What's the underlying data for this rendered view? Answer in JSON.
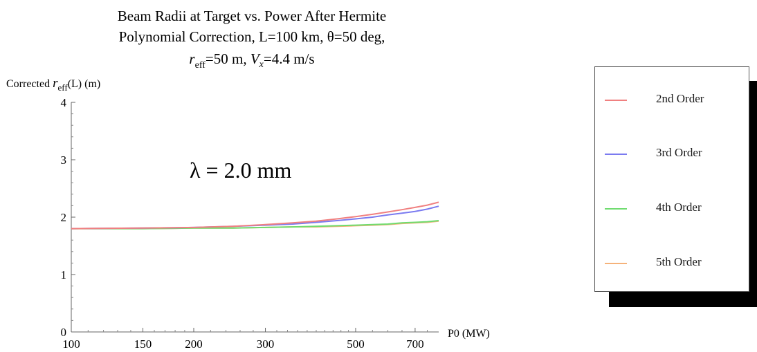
{
  "chart_data": {
    "type": "line",
    "title_lines": [
      "Beam Radii at Target vs. Power After Hermite",
      "Polynomial Correction, L=100 km, θ=50 deg,"
    ],
    "title_line3": {
      "r": "r",
      "eff": "eff",
      "mid": "=50 m, ",
      "V": "V",
      "x": "x",
      "end": "=4.4 m/s"
    },
    "ylabel": {
      "prefix": "Corrected ",
      "r": "r",
      "eff": "eff",
      "suffix": "(L) (m)"
    },
    "xlabel": "P0 (MW)",
    "x_scale": "log",
    "xlim": [
      100,
      800
    ],
    "ylim": [
      0,
      4
    ],
    "x_ticks": [
      100,
      150,
      200,
      300,
      500,
      700
    ],
    "y_ticks": [
      0,
      1,
      2,
      3,
      4
    ],
    "annotation": "λ = 2.0 mm",
    "x": [
      100,
      150,
      200,
      250,
      300,
      350,
      400,
      450,
      500,
      550,
      600,
      650,
      700,
      750,
      800
    ],
    "series": [
      {
        "name": "2nd Order",
        "color": "#f08080",
        "values": [
          1.8,
          1.81,
          1.82,
          1.84,
          1.87,
          1.9,
          1.93,
          1.97,
          2.01,
          2.05,
          2.09,
          2.13,
          2.17,
          2.21,
          2.26
        ]
      },
      {
        "name": "3rd Order",
        "color": "#7b7bf0",
        "values": [
          1.8,
          1.81,
          1.82,
          1.84,
          1.86,
          1.88,
          1.91,
          1.94,
          1.97,
          2.0,
          2.04,
          2.07,
          2.1,
          2.14,
          2.19
        ]
      },
      {
        "name": "4th Order",
        "color": "#6fdc6f",
        "values": [
          1.8,
          1.8,
          1.81,
          1.81,
          1.82,
          1.83,
          1.84,
          1.85,
          1.86,
          1.87,
          1.88,
          1.9,
          1.91,
          1.92,
          1.94
        ]
      },
      {
        "name": "5th Order",
        "color": "#f5b27a",
        "values": [
          1.8,
          1.8,
          1.81,
          1.81,
          1.82,
          1.83,
          1.83,
          1.84,
          1.85,
          1.86,
          1.87,
          1.89,
          1.9,
          1.91,
          1.93
        ]
      }
    ],
    "grid": false,
    "legend_position": "right"
  }
}
